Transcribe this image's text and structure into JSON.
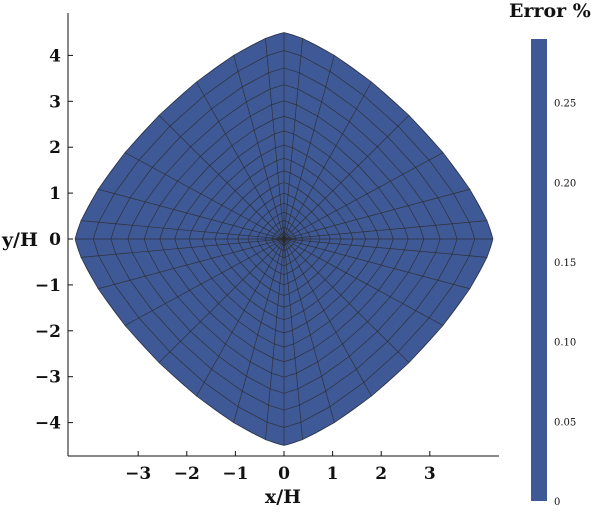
{
  "chart_data": {
    "type": "heatmap",
    "title": "",
    "xlabel": "x/H",
    "ylabel": "y/H",
    "x_ticks": [
      {
        "value": -3,
        "label": "−3"
      },
      {
        "value": -2,
        "label": "−2"
      },
      {
        "value": -1,
        "label": "−1"
      },
      {
        "value": 0,
        "label": "0"
      },
      {
        "value": 1,
        "label": "1"
      },
      {
        "value": 2,
        "label": "2"
      },
      {
        "value": 3,
        "label": "3"
      }
    ],
    "y_ticks": [
      {
        "value": 4,
        "label": "4"
      },
      {
        "value": 3,
        "label": "3"
      },
      {
        "value": 2,
        "label": "2"
      },
      {
        "value": 1,
        "label": "1"
      },
      {
        "value": 0,
        "label": "0"
      },
      {
        "value": -1,
        "label": "−1"
      },
      {
        "value": -2,
        "label": "−2"
      },
      {
        "value": -3,
        "label": "−3"
      },
      {
        "value": -4,
        "label": "−4"
      }
    ],
    "domain_extent": {
      "x": [
        -4.3,
        4.3
      ],
      "y": [
        -4.5,
        4.5
      ]
    },
    "field_value_error_percent": 0,
    "colorbar": {
      "title": "Error %",
      "range": [
        0,
        0.29
      ],
      "ticks": [
        {
          "value": 0,
          "label": "0"
        },
        {
          "value": 0.05,
          "label": "0.05"
        },
        {
          "value": 0.1,
          "label": "0.10"
        },
        {
          "value": 0.15,
          "label": "0.15"
        },
        {
          "value": 0.2,
          "label": "0.20"
        },
        {
          "value": 0.25,
          "label": "0.25"
        }
      ],
      "color": "#3f5996"
    },
    "fill_color": "#3f5996",
    "mesh_color": "#2a2a2a"
  }
}
